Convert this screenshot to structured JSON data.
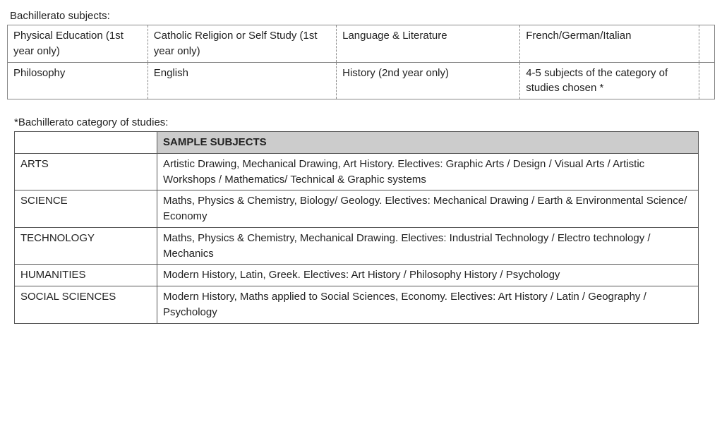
{
  "table1": {
    "label": "Bachillerato subjects:",
    "rows": [
      [
        "Physical Education (1st year only)",
        "Catholic Religion or Self Study (1st year only)",
        "Language & Literature",
        "French/German/Italian"
      ],
      [
        "Philosophy",
        "English",
        "History (2nd year only)",
        "4-5 subjects of the category of studies chosen *"
      ]
    ]
  },
  "table2": {
    "label": "*Bachillerato category of studies:",
    "header": "SAMPLE SUBJECTS",
    "rows": [
      {
        "category": "ARTS",
        "subjects": "Artistic Drawing, Mechanical Drawing, Art History. Electives: Graphic Arts / Design / Visual Arts / Artistic Workshops / Mathematics/ Technical & Graphic systems"
      },
      {
        "category": "SCIENCE",
        "subjects": "Maths, Physics & Chemistry, Biology/ Geology. Electives: Mechanical Drawing / Earth & Environmental Science/ Economy"
      },
      {
        "category": "TECHNOLOGY",
        "subjects": "Maths, Physics & Chemistry, Mechanical Drawing. Electives: Industrial Technology / Electro technology / Mechanics"
      },
      {
        "category": "HUMANITIES",
        "subjects": "Modern History, Latin, Greek. Electives: Art History / Philosophy History / Psychology"
      },
      {
        "category": "SOCIAL SCIENCES",
        "subjects": "Modern History, Maths applied to Social Sciences, Economy. Electives: Art History / Latin / Geography / Psychology"
      }
    ]
  },
  "colors": {
    "text": "#222222",
    "border": "#888888",
    "border2": "#555555",
    "header_bg": "#cccccc",
    "page_bg": "#ffffff"
  },
  "fonts": {
    "family": "Verdana",
    "size_pt": 11
  }
}
